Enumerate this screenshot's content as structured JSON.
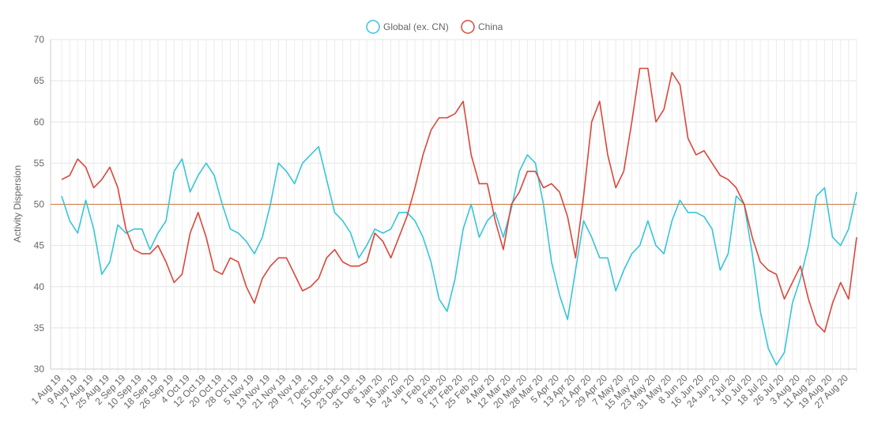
{
  "chart_data": {
    "type": "line",
    "y_label": "Activity Dispersion",
    "categories": [
      "1 Aug 19",
      null,
      "9 Aug 19",
      null,
      "17 Aug 19",
      null,
      "25 Aug 19",
      null,
      "2 Sep 19",
      null,
      "10 Sep 19",
      null,
      "18 Sep 19",
      null,
      "26 Sep 19",
      null,
      "4 Oct 19",
      null,
      "12 Oct 19",
      null,
      "20 Oct 19",
      null,
      "28 Oct 19",
      null,
      "5 Nov 19",
      null,
      "13 Nov 19",
      null,
      "21 Nov 19",
      null,
      "29 Nov 19",
      null,
      "7 Dec 19",
      null,
      "15 Dec 19",
      null,
      "23 Dec 19",
      null,
      "31 Dec 19",
      null,
      "8 Jan 20",
      null,
      "16 Jan 20",
      null,
      "24 Jan 20",
      null,
      "1 Feb 20",
      null,
      "9 Feb 20",
      null,
      "17 Feb 20",
      null,
      "25 Feb 20",
      null,
      "4 Mar 20",
      null,
      "12 Mar 20",
      null,
      "20 Mar 20",
      null,
      "28 Mar 20",
      null,
      "5 Apr 20",
      null,
      "13 Apr 20",
      null,
      "21 Apr 20",
      null,
      "29 Apr 20",
      null,
      "7 May 20",
      null,
      "15 May 20",
      null,
      "23 May 20",
      null,
      "31 May 20",
      null,
      "8 Jun 20",
      null,
      "16 Jun 20",
      null,
      "24 Jun 20",
      null,
      "2 Jul 20",
      null,
      "10 Jul 20",
      null,
      "18 Jul 20",
      null,
      "26 Jul 20",
      null,
      "3 Aug 20",
      null,
      "11 Aug 20",
      null,
      "19 Aug 20",
      null,
      "27 Aug 20",
      null
    ],
    "series": [
      {
        "name": "Global (ex. CN)",
        "color": "#36c5d8",
        "values": [
          51,
          48,
          46.5,
          50.5,
          47,
          41.5,
          43,
          47.5,
          46.5,
          47,
          47,
          44.5,
          46.5,
          48,
          54,
          55.5,
          51.5,
          53.5,
          55,
          53.5,
          50,
          47,
          46.5,
          45.5,
          44,
          46,
          50,
          55,
          54,
          52.5,
          55,
          56,
          57,
          53,
          49,
          48,
          46.5,
          43.5,
          45,
          47,
          46.5,
          47,
          49,
          49,
          48,
          46,
          43,
          38.5,
          37,
          41,
          47,
          50,
          46,
          48,
          49,
          46,
          49.5,
          54,
          56,
          55,
          50,
          43,
          39,
          36,
          42,
          48,
          46,
          43.5,
          43.5,
          39.5,
          42,
          44,
          45,
          48,
          45,
          44,
          48,
          50.5,
          49,
          49,
          48.5,
          47,
          42,
          44,
          51,
          50,
          44,
          37,
          32.5,
          30.5,
          32,
          38,
          41,
          45,
          51,
          52,
          46,
          45,
          47,
          51.5
        ]
      },
      {
        "name": "China",
        "color": "#d9473a",
        "values": [
          53,
          53.5,
          55.5,
          54.5,
          52,
          53,
          54.5,
          52,
          47,
          44.5,
          44,
          44,
          45,
          43,
          40.5,
          41.5,
          46.5,
          49,
          46,
          42,
          41.5,
          43.5,
          43,
          40,
          38,
          41,
          42.5,
          43.5,
          43.5,
          41.5,
          39.5,
          40,
          41,
          43.5,
          44.5,
          43,
          42.5,
          42.5,
          43,
          46.5,
          45.5,
          43.5,
          46,
          48.5,
          52,
          56,
          59,
          60.5,
          60.5,
          61,
          62.5,
          56,
          52.5,
          52.5,
          48,
          44.5,
          50,
          51.5,
          54,
          54,
          52,
          52.5,
          51.5,
          48.5,
          43.5,
          51,
          60,
          62.5,
          56,
          52,
          54,
          60,
          66.5,
          66.5,
          60,
          61.5,
          66,
          64.5,
          58,
          56,
          56.5,
          55,
          53.5,
          53,
          52,
          50,
          46,
          43,
          42,
          41.5,
          38.5,
          40.5,
          42.5,
          38.5,
          35.5,
          34.5,
          38,
          40.5,
          38.5,
          46
        ]
      }
    ],
    "reference_line": {
      "value": 50,
      "color": "#c8783e"
    },
    "ylim": [
      30,
      70
    ],
    "yticks": [
      30,
      35,
      40,
      45,
      50,
      55,
      60,
      65,
      70
    ],
    "grid": true,
    "legend": "top"
  }
}
